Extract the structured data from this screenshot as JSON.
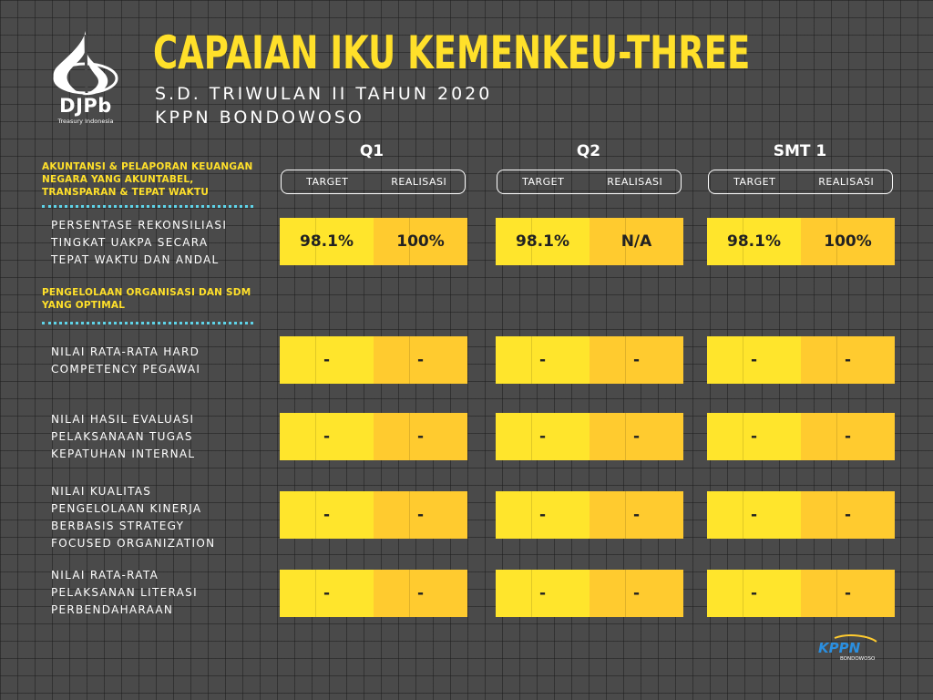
{
  "logo": {
    "name": "DJPb",
    "tagline": "Treasury Indonesia",
    "icon": "djpb-emblem-icon"
  },
  "header": {
    "title": "CAPAIAN IKU KEMENKEU-THREE",
    "subtitle1": "S.D. TRIWULAN II TAHUN 2020",
    "subtitle2": "KPPN BONDOWOSO"
  },
  "columns": [
    {
      "label": "Q1",
      "target_label": "TARGET",
      "realisasi_label": "REALISASI"
    },
    {
      "label": "Q2",
      "target_label": "TARGET",
      "realisasi_label": "REALISASI"
    },
    {
      "label": "SMT 1",
      "target_label": "TARGET",
      "realisasi_label": "REALISASI"
    }
  ],
  "sections": [
    {
      "title_lines": [
        "AKUNTANSI & PELAPORAN KEUANGAN",
        "NEGARA YANG AKUNTABEL,",
        "TRANSPARAN & TEPAT WAKTU"
      ]
    },
    {
      "title_lines": [
        "PENGELOLAAN ORGANISASI DAN SDM",
        "YANG OPTIMAL"
      ]
    }
  ],
  "rows": [
    {
      "label_lines": [
        "PERSENTASE REKONSILIASI",
        "TINGKAT UAKPA SECARA",
        "TEPAT WAKTU DAN ANDAL"
      ],
      "values": [
        [
          "98.1%",
          "100%"
        ],
        [
          "98.1%",
          "N/A"
        ],
        [
          "98.1%",
          "100%"
        ]
      ]
    },
    {
      "label_lines": [
        "NILAI RATA-RATA HARD",
        "COMPETENCY PEGAWAI"
      ],
      "values": [
        [
          "-",
          "-"
        ],
        [
          "-",
          "-"
        ],
        [
          "-",
          "-"
        ]
      ]
    },
    {
      "label_lines": [
        "NILAI HASIL EVALUASI",
        "PELAKSANAAN TUGAS",
        "KEPATUHAN INTERNAL"
      ],
      "values": [
        [
          "-",
          "-"
        ],
        [
          "-",
          "-"
        ],
        [
          "-",
          "-"
        ]
      ]
    },
    {
      "label_lines": [
        "NILAI KUALITAS",
        "PENGELOLAAN KINERJA",
        "BERBASIS STRATEGY",
        "FOCUSED ORGANIZATION"
      ],
      "values": [
        [
          "-",
          "-"
        ],
        [
          "-",
          "-"
        ],
        [
          "-",
          "-"
        ]
      ]
    },
    {
      "label_lines": [
        "NILAI RATA-RATA",
        "PELAKSANAN LITERASI",
        "PERBENDAHARAAN"
      ],
      "values": [
        [
          "-",
          "-"
        ],
        [
          "-",
          "-"
        ],
        [
          "-",
          "-"
        ]
      ]
    }
  ],
  "footer_logo": {
    "name": "KPPN",
    "sub": "BONDOWOSO",
    "icon": "kppn-logo-icon"
  },
  "colors": {
    "accent_yellow": "#ffe02a",
    "target_cell": "#ffe52c",
    "realisasi_cell": "#ffcb2f",
    "divider": "#5fd3e8",
    "background": "#4a4a4a"
  }
}
